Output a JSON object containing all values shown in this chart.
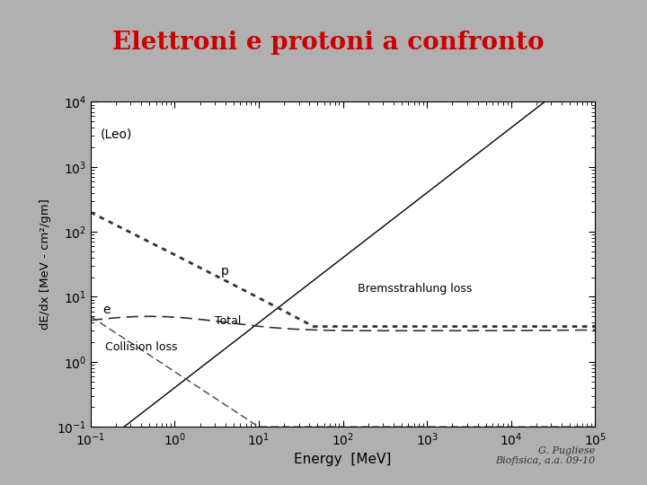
{
  "title": "Elettroni e protoni a confronto",
  "title_color": "#CC0000",
  "title_bg_color": "#FFFFA0",
  "title_fontsize": 20,
  "xlabel": "Energy  [MeV]",
  "ylabel": "dE/dx [MeV - cm²/gm]",
  "leo_label": "(Leo)",
  "footer_line1": "G. Pugliese",
  "footer_line2": "Biofisica, a.a. 09-10",
  "slide_bg": "#b0b0b0",
  "plot_outer_bg": "#ffffff",
  "plot_bg": "#ffffff",
  "text_color": "#222222"
}
